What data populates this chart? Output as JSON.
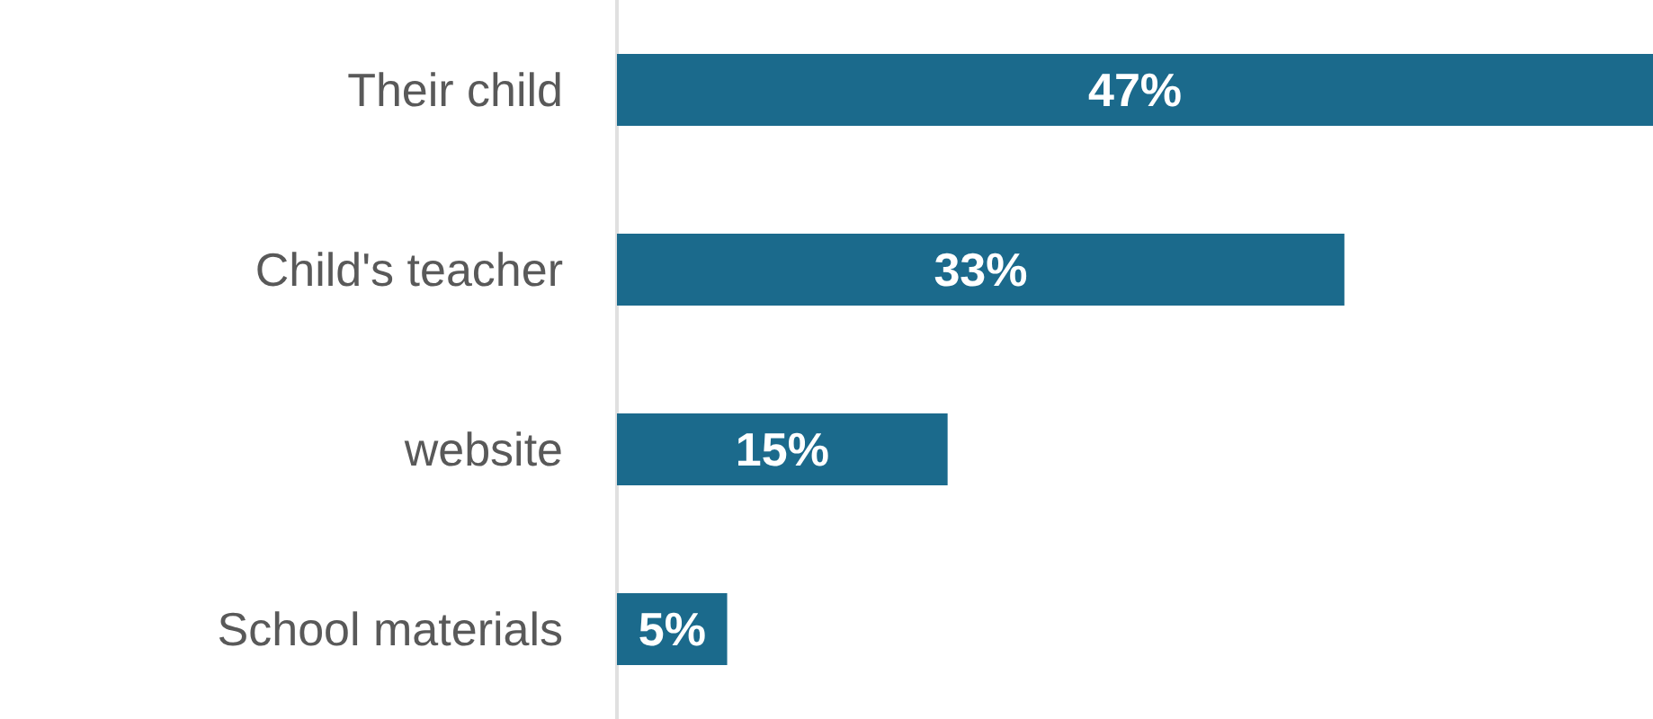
{
  "chart_data": {
    "type": "bar",
    "orientation": "horizontal",
    "categories": [
      "Their child",
      "Child's teacher",
      "website",
      "School materials"
    ],
    "values": [
      47,
      33,
      15,
      5
    ],
    "value_labels": [
      "47%",
      "33%",
      "15%",
      "5%"
    ],
    "color": "#1b6a8c",
    "tick_labels": "y"
  }
}
